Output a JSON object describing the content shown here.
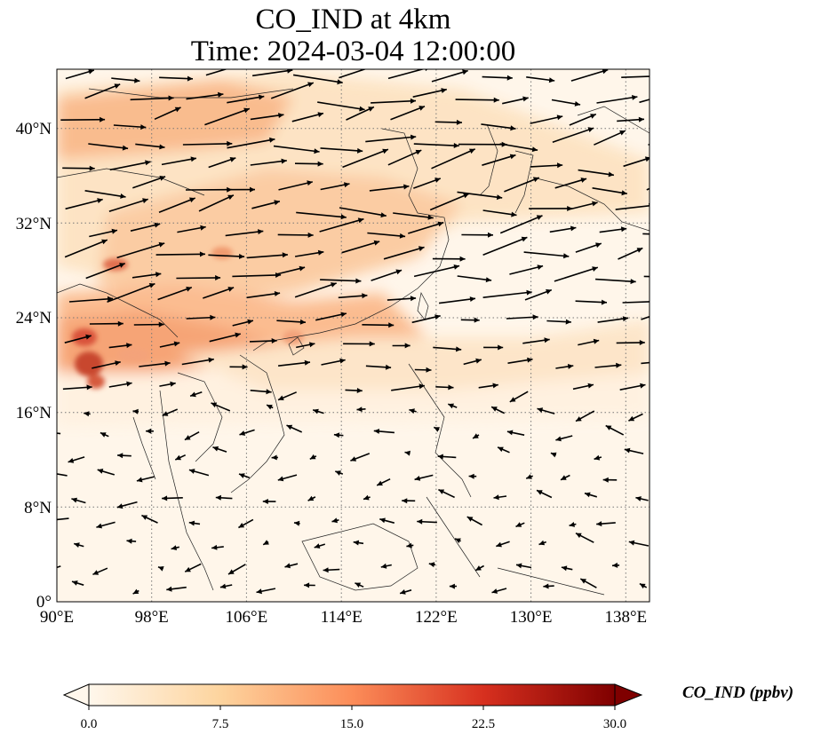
{
  "title_line1": "CO_IND at 4km",
  "title_line2": "Time: 2024-03-04 12:00:00",
  "map": {
    "extent": {
      "lon_min": 90,
      "lon_max": 140,
      "lat_min": 0,
      "lat_max": 45
    },
    "lat_ticks": [
      {
        "value": 0,
        "label": "0°"
      },
      {
        "value": 8,
        "label": "8°N"
      },
      {
        "value": 16,
        "label": "16°N"
      },
      {
        "value": 24,
        "label": "24°N"
      },
      {
        "value": 32,
        "label": "32°N"
      },
      {
        "value": 40,
        "label": "40°N"
      }
    ],
    "lon_ticks": [
      {
        "value": 90,
        "label": "90°E"
      },
      {
        "value": 98,
        "label": "98°E"
      },
      {
        "value": 106,
        "label": "106°E"
      },
      {
        "value": 114,
        "label": "114°E"
      },
      {
        "value": 122,
        "label": "122°E"
      },
      {
        "value": 130,
        "label": "130°E"
      },
      {
        "value": 138,
        "label": "138°E"
      }
    ],
    "gridlines": "dotted",
    "vector_field": "wind arrows",
    "colormap": "OrRd",
    "colorbar": {
      "label": "CO_IND (ppbv)",
      "min": 0.0,
      "max": 30.0,
      "extend": "both",
      "ticks": [
        "0.0",
        "7.5",
        "15.0",
        "22.5",
        "30.0"
      ],
      "colors": [
        "#fff7ec",
        "#fdd49e",
        "#fc8d59",
        "#d7301f",
        "#7f0000"
      ]
    }
  }
}
